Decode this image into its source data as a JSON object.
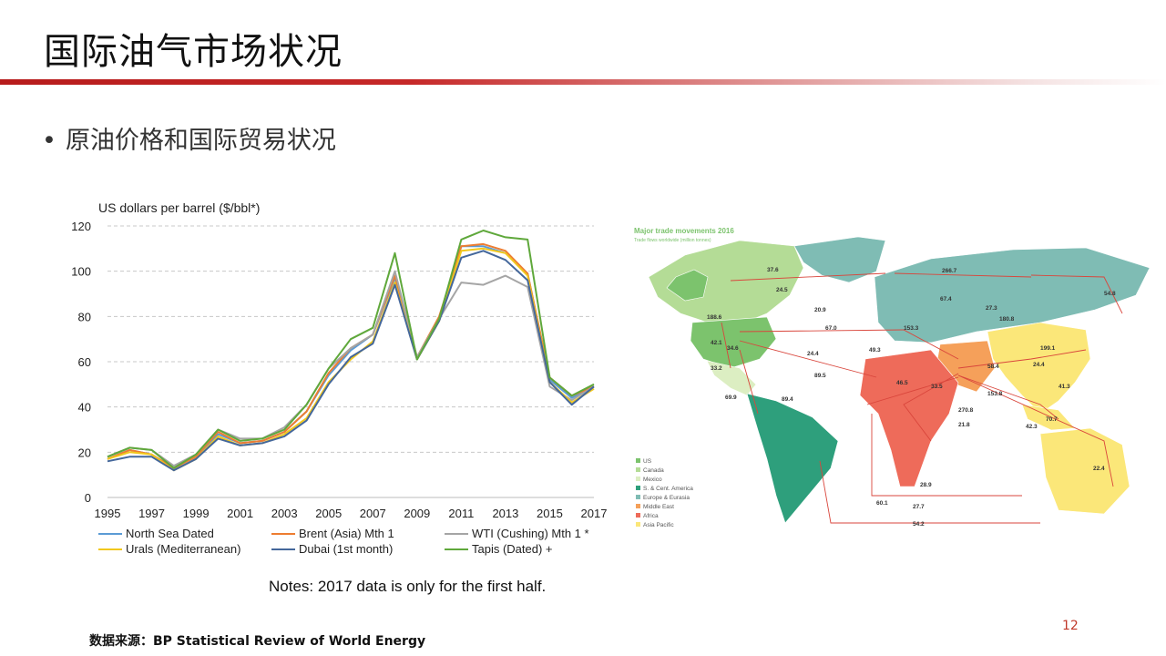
{
  "slide": {
    "title": "国际油气市场状况",
    "bullet": "原油价格和国际贸易状况",
    "notes": "Notes: 2017 data is only for the first half.",
    "source": "数据来源：BP Statistical Review of World Energy",
    "page_number": "12"
  },
  "chart_data": {
    "type": "line",
    "ylabel": "US dollars per barrel ($/bbl*)",
    "ylim": [
      0,
      120
    ],
    "yticks": [
      0,
      20,
      40,
      60,
      80,
      100,
      120
    ],
    "x": [
      1995,
      1996,
      1997,
      1998,
      1999,
      2000,
      2001,
      2002,
      2003,
      2004,
      2005,
      2006,
      2007,
      2008,
      2009,
      2010,
      2011,
      2012,
      2013,
      2014,
      2015,
      2016,
      2017
    ],
    "xtick_labels": [
      "1995",
      "1997",
      "1999",
      "2001",
      "2003",
      "2005",
      "2007",
      "2009",
      "2011",
      "2013",
      "2015",
      "2017"
    ],
    "grid": "horizontal dashed",
    "legend_position": "bottom",
    "series": [
      {
        "name": "North Sea Dated",
        "color": "#5b9bd5",
        "values": [
          17,
          21,
          19,
          13,
          18,
          28,
          24,
          25,
          29,
          38,
          54,
          65,
          72,
          97,
          62,
          79,
          111,
          111,
          108,
          99,
          52,
          44,
          49
        ]
      },
      {
        "name": "Brent (Asia) Mth 1",
        "color": "#ed7d31",
        "values": [
          17,
          21,
          19,
          13,
          18,
          29,
          24,
          25,
          29,
          38,
          55,
          66,
          72,
          98,
          62,
          80,
          111,
          112,
          109,
          99,
          53,
          45,
          49
        ]
      },
      {
        "name": "WTI (Cushing) Mth 1 *",
        "color": "#a5a5a5",
        "values": [
          18,
          22,
          21,
          14,
          19,
          30,
          26,
          26,
          31,
          41,
          57,
          66,
          72,
          100,
          62,
          79,
          95,
          94,
          98,
          93,
          49,
          43,
          49
        ]
      },
      {
        "name": "Urals (Mediterranean)",
        "color": "#f2c81d",
        "values": [
          17,
          20,
          19,
          12,
          17,
          27,
          23,
          24,
          28,
          35,
          51,
          61,
          69,
          95,
          61,
          78,
          109,
          110,
          108,
          98,
          51,
          42,
          48
        ]
      },
      {
        "name": "Dubai (1st month)",
        "color": "#44679b",
        "values": [
          16,
          18,
          18,
          12,
          17,
          26,
          23,
          24,
          27,
          34,
          50,
          62,
          68,
          94,
          61,
          78,
          106,
          109,
          105,
          96,
          51,
          41,
          49
        ]
      },
      {
        "name": "Tapis (Dated) +",
        "color": "#5fa83b",
        "values": [
          18,
          22,
          21,
          13,
          19,
          30,
          25,
          26,
          30,
          41,
          57,
          70,
          75,
          108,
          61,
          79,
          114,
          118,
          115,
          114,
          53,
          45,
          50
        ]
      }
    ]
  },
  "map": {
    "title": "Major trade movements 2016",
    "subtitle": "Trade flows worldwide (million tonnes)",
    "legend": [
      {
        "label": "US",
        "color": "#7cc36d"
      },
      {
        "label": "Canada",
        "color": "#b4dc96"
      },
      {
        "label": "Mexico",
        "color": "#dceec2"
      },
      {
        "label": "S. & Cent. America",
        "color": "#2e9f7c"
      },
      {
        "label": "Europe & Eurasia",
        "color": "#7fbcb4"
      },
      {
        "label": "Middle East",
        "color": "#f5a05a"
      },
      {
        "label": "Africa",
        "color": "#ee6b5a"
      },
      {
        "label": "Asia Pacific",
        "color": "#fbe779"
      }
    ],
    "flow_labels": [
      "37.6",
      "24.5",
      "266.7",
      "54.8",
      "20.9",
      "67.4",
      "27.3",
      "180.8",
      "188.6",
      "67.0",
      "153.3",
      "42.1",
      "34.6",
      "24.4",
      "49.3",
      "199.1",
      "33.2",
      "89.5",
      "58.4",
      "24.4",
      "46.5",
      "33.5",
      "41.3",
      "69.9",
      "89.4",
      "153.8",
      "270.8",
      "70.7",
      "21.8",
      "42.3",
      "22.4",
      "28.9",
      "60.1",
      "27.7",
      "54.2"
    ],
    "route_color": "#d9463c"
  }
}
